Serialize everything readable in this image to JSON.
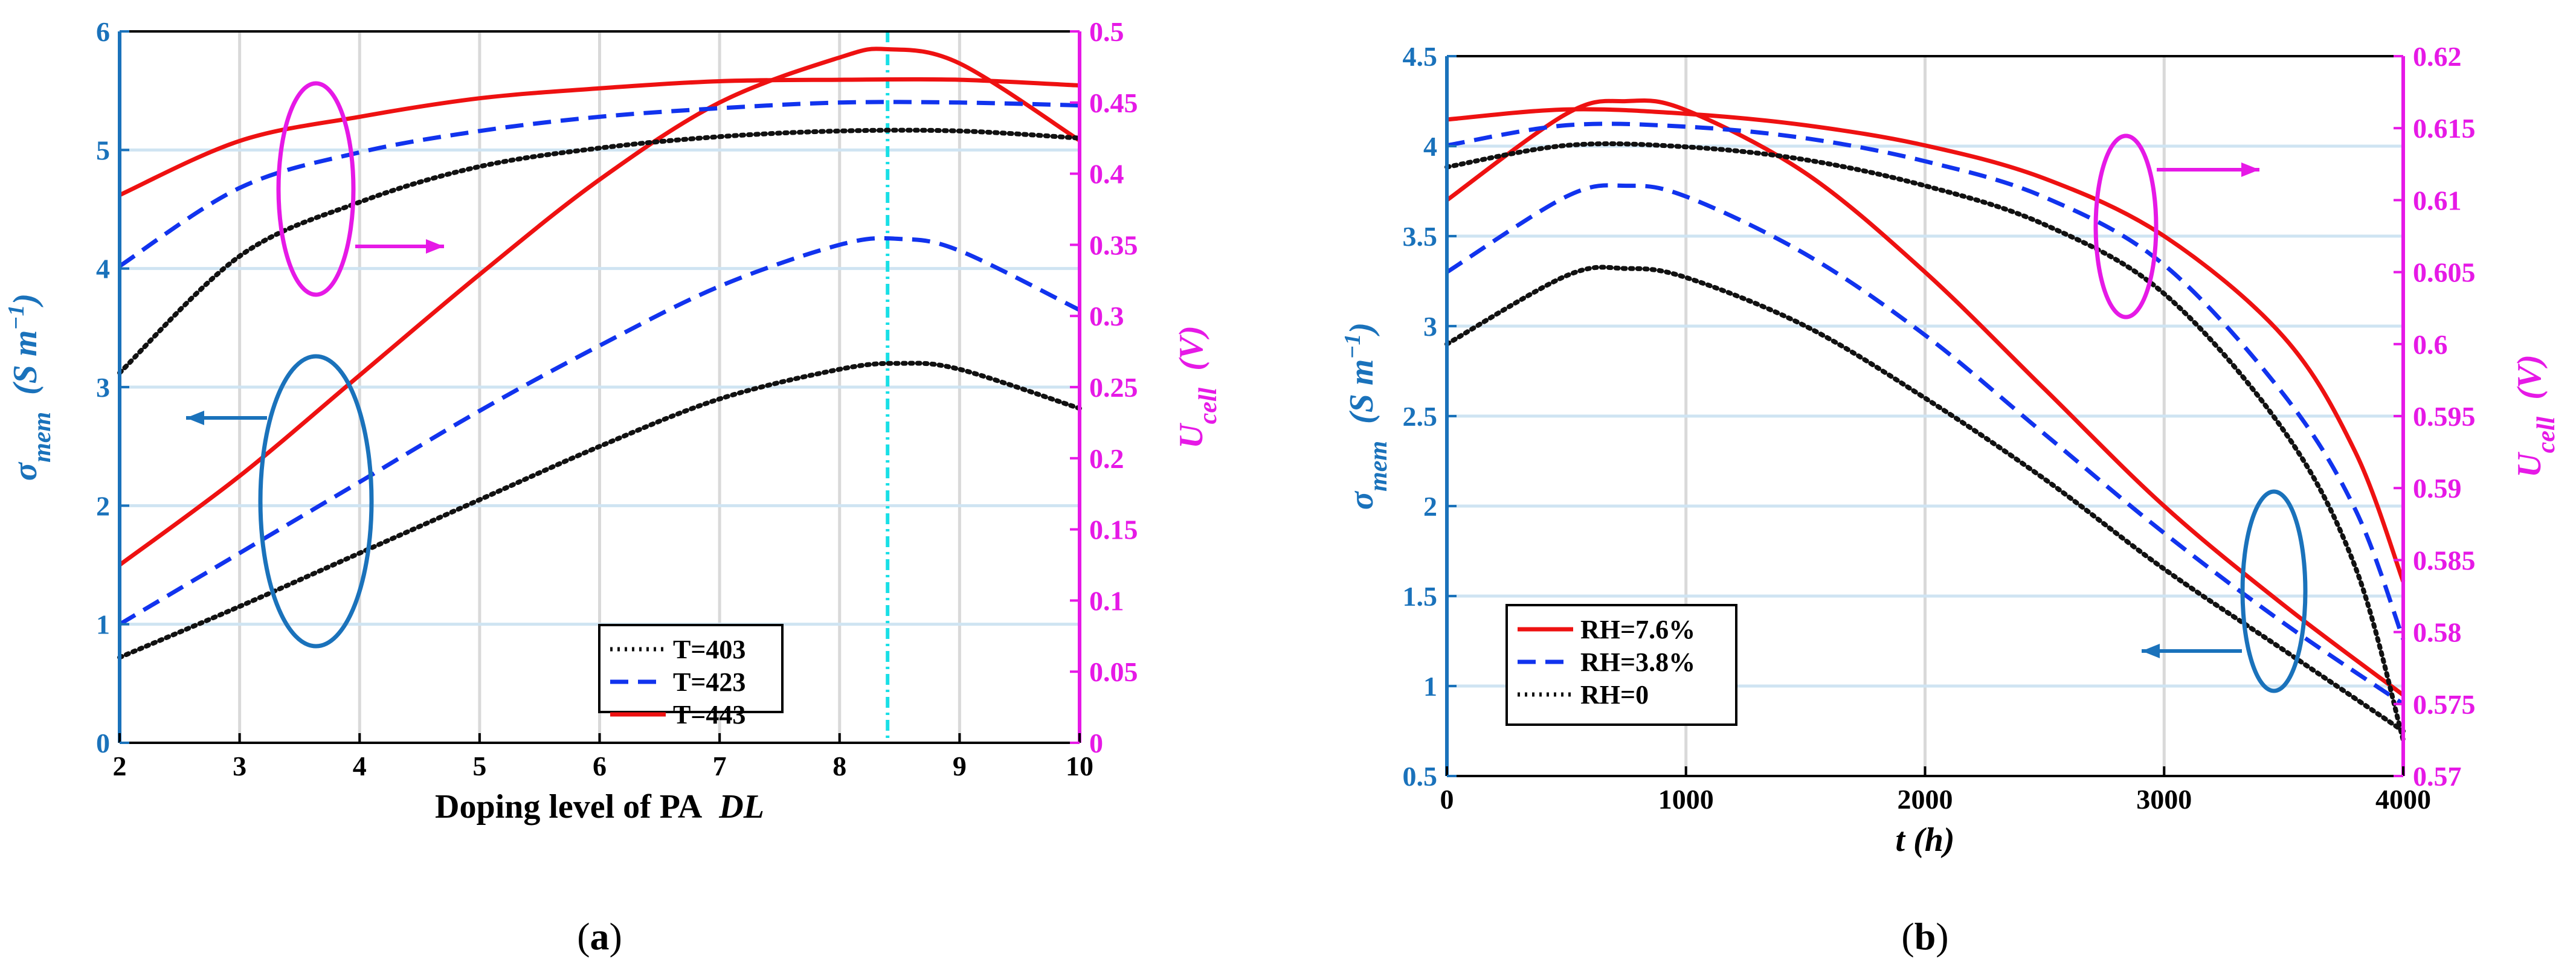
{
  "colors": {
    "left_axis": "#1a72bb",
    "right_axis": "#e619e6",
    "red": "#ee1111",
    "blue": "#1133ee",
    "black": "#111111",
    "cyan": "#19dfe6",
    "grid": "#d9d9d9",
    "grid_blue": "#cfe4f2"
  },
  "chart_data": [
    {
      "id": "a",
      "type": "line",
      "caption": {
        "open": "(",
        "letter": "a",
        "close": ")"
      },
      "xlabel": "Doping level of PA",
      "xlabel_var": "DL",
      "ylabel_left": {
        "sym": "σ",
        "sub": "mem",
        "unit": "(S m",
        "sup": "−1",
        "close": ")"
      },
      "ylabel_right": {
        "sym": "U",
        "sub": "cell",
        "unit": "(V)"
      },
      "xlim": [
        2,
        10
      ],
      "ylim_left": [
        0,
        6
      ],
      "ylim_right": [
        0,
        0.5
      ],
      "xticks": [
        2,
        3,
        4,
        5,
        6,
        7,
        8,
        9,
        10
      ],
      "yticks_left": [
        0,
        1,
        2,
        3,
        4,
        5,
        6
      ],
      "yticks_right": [
        0,
        0.05,
        0.1,
        0.15,
        0.2,
        0.25,
        0.3,
        0.35,
        0.4,
        0.45,
        0.5
      ],
      "vline_x": 8.4,
      "series": [
        {
          "name": "T=403",
          "axis": "left",
          "style": "dotted",
          "color": "#111111",
          "x": [
            2,
            3,
            4,
            5,
            6,
            7,
            8,
            8.5,
            9,
            10
          ],
          "y": [
            0.72,
            1.15,
            1.6,
            2.05,
            2.5,
            2.9,
            3.15,
            3.2,
            3.15,
            2.82
          ]
        },
        {
          "name": "T=423",
          "axis": "left",
          "style": "dashed",
          "color": "#1133ee",
          "x": [
            2,
            3,
            4,
            5,
            6,
            7,
            8,
            8.5,
            9,
            10
          ],
          "y": [
            1.0,
            1.6,
            2.2,
            2.8,
            3.35,
            3.85,
            4.2,
            4.25,
            4.15,
            3.65
          ]
        },
        {
          "name": "T=443",
          "axis": "left",
          "style": "solid",
          "color": "#ee1111",
          "x": [
            2,
            3,
            4,
            5,
            6,
            7,
            8,
            8.4,
            9,
            10
          ],
          "y": [
            1.5,
            2.25,
            3.1,
            3.95,
            4.75,
            5.4,
            5.78,
            5.85,
            5.73,
            5.08
          ]
        },
        {
          "name": "T=403 Ucell",
          "axis": "right",
          "style": "dotted",
          "color": "#111111",
          "x": [
            2,
            3,
            4,
            5,
            6,
            7,
            8,
            9,
            10
          ],
          "y": [
            0.26,
            0.342,
            0.38,
            0.405,
            0.418,
            0.426,
            0.43,
            0.43,
            0.425
          ]
        },
        {
          "name": "T=423 Ucell",
          "axis": "right",
          "style": "dashed",
          "color": "#1133ee",
          "x": [
            2,
            3,
            4,
            5,
            6,
            7,
            8,
            9,
            10
          ],
          "y": [
            0.335,
            0.39,
            0.415,
            0.43,
            0.44,
            0.446,
            0.45,
            0.45,
            0.448
          ]
        },
        {
          "name": "T=443 Ucell",
          "axis": "right",
          "style": "solid",
          "color": "#ee1111",
          "x": [
            2,
            3,
            4,
            5,
            6,
            7,
            8,
            9,
            10
          ],
          "y": [
            0.385,
            0.423,
            0.44,
            0.453,
            0.46,
            0.465,
            0.466,
            0.466,
            0.462
          ]
        }
      ],
      "legend": [
        "T=403",
        "T=423",
        "T=443"
      ],
      "legend_location": "bottom-right"
    },
    {
      "id": "b",
      "type": "line",
      "caption": {
        "open": "(",
        "letter": "b",
        "close": ")"
      },
      "xlabel": "",
      "xlabel_var": "t",
      "xlabel_unit": "(h)",
      "ylabel_left": {
        "sym": "σ",
        "sub": "mem",
        "unit": "(S m",
        "sup": "−1",
        "close": ")"
      },
      "ylabel_right": {
        "sym": "U",
        "sub": "cell",
        "unit": "(V)"
      },
      "xlim": [
        0,
        4000
      ],
      "ylim_left": [
        0.5,
        4.5
      ],
      "ylim_right": [
        0.57,
        0.62
      ],
      "xticks": [
        0,
        1000,
        2000,
        3000,
        4000
      ],
      "yticks_left": [
        0.5,
        1,
        1.5,
        2,
        2.5,
        3,
        3.5,
        4,
        4.5
      ],
      "yticks_left_labels": [
        "0.5",
        "1",
        "1.5",
        "2",
        "2.5",
        "3",
        "3.5",
        "4",
        "4.5"
      ],
      "yticks_right": [
        0.57,
        0.575,
        0.58,
        0.585,
        0.59,
        0.595,
        0.6,
        0.605,
        0.61,
        0.615,
        0.62
      ],
      "series": [
        {
          "name": "RH=7.6%",
          "axis": "left",
          "style": "solid",
          "color": "#ee1111",
          "x": [
            0,
            500,
            750,
            1000,
            1500,
            2000,
            2500,
            3000,
            3500,
            4000
          ],
          "y": [
            3.7,
            4.18,
            4.25,
            4.2,
            3.85,
            3.3,
            2.65,
            2.0,
            1.45,
            0.95
          ]
        },
        {
          "name": "RH=3.8%",
          "axis": "left",
          "style": "dashed",
          "color": "#1133ee",
          "x": [
            0,
            500,
            750,
            1000,
            1500,
            2000,
            2500,
            3000,
            3500,
            4000
          ],
          "y": [
            3.3,
            3.72,
            3.78,
            3.72,
            3.4,
            2.95,
            2.4,
            1.85,
            1.35,
            0.9
          ]
        },
        {
          "name": "RH=0",
          "axis": "left",
          "style": "dotted",
          "color": "#111111",
          "x": [
            0,
            500,
            750,
            1000,
            1500,
            2000,
            2500,
            3000,
            3500,
            4000
          ],
          "y": [
            2.9,
            3.28,
            3.32,
            3.27,
            3.0,
            2.6,
            2.15,
            1.65,
            1.2,
            0.75
          ]
        },
        {
          "name": "RH=7.6% Ucell",
          "axis": "right",
          "style": "solid",
          "color": "#ee1111",
          "x": [
            0,
            500,
            1000,
            1500,
            2000,
            2500,
            3000,
            3500,
            3800,
            4000
          ],
          "y": [
            0.6156,
            0.6163,
            0.616,
            0.6152,
            0.6138,
            0.6115,
            0.6075,
            0.6005,
            0.5925,
            0.5835
          ]
        },
        {
          "name": "RH=3.8% Ucell",
          "axis": "right",
          "style": "dashed",
          "color": "#1133ee",
          "x": [
            0,
            500,
            1000,
            1500,
            2000,
            2500,
            3000,
            3500,
            3800,
            4000
          ],
          "y": [
            0.6138,
            0.6152,
            0.6151,
            0.6143,
            0.6127,
            0.6102,
            0.6055,
            0.5965,
            0.5885,
            0.5795
          ]
        },
        {
          "name": "RH=0 Ucell",
          "axis": "right",
          "style": "dotted",
          "color": "#111111",
          "x": [
            0,
            500,
            1000,
            1500,
            2000,
            2500,
            3000,
            3500,
            3800,
            4000
          ],
          "y": [
            0.6123,
            0.6138,
            0.6137,
            0.6128,
            0.611,
            0.6083,
            0.6035,
            0.594,
            0.5845,
            0.5725
          ]
        }
      ],
      "legend": [
        "RH=7.6%",
        "RH=3.8%",
        "RH=0"
      ],
      "legend_location": "bottom-left"
    }
  ]
}
